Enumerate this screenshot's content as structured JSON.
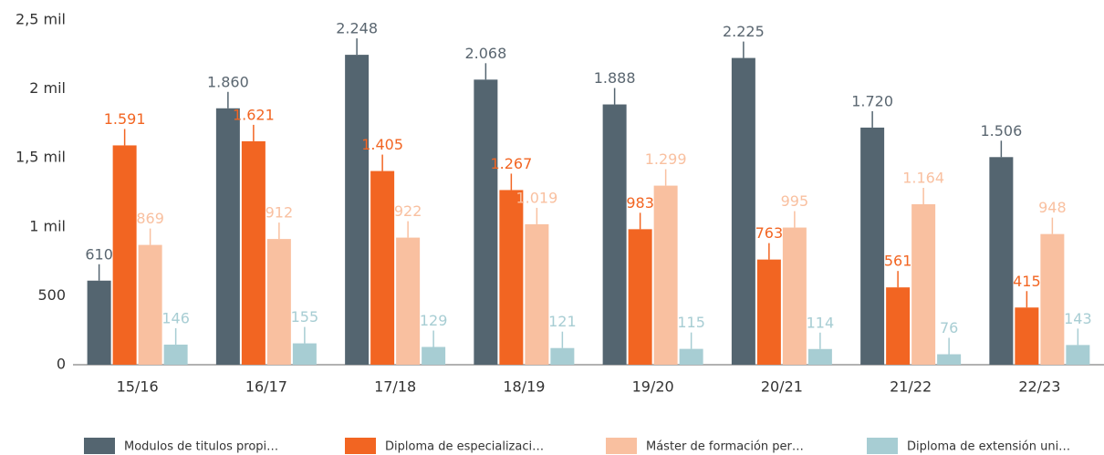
{
  "chart_data": {
    "type": "bar",
    "categories": [
      "15/16",
      "16/17",
      "17/18",
      "18/19",
      "19/20",
      "20/21",
      "21/22",
      "22/23"
    ],
    "series": [
      {
        "name": "Modulos de titulos propi…",
        "color": "#546570",
        "label_color": "#5a6670",
        "values": [
          610,
          1860,
          2248,
          2068,
          1888,
          2225,
          1720,
          1506
        ],
        "value_labels": [
          "610",
          "1.860",
          "2.248",
          "2.068",
          "1.888",
          "2.225",
          "1.720",
          "1.506"
        ]
      },
      {
        "name": "Diploma de especializaci…",
        "color": "#f26522",
        "label_color": "#f26522",
        "values": [
          1591,
          1621,
          1405,
          1267,
          983,
          763,
          561,
          415
        ],
        "value_labels": [
          "1.591",
          "1.621",
          "1.405",
          "1.267",
          "983",
          "763",
          "561",
          "415"
        ]
      },
      {
        "name": "Máster de formación per…",
        "color": "#f9c0a0",
        "label_color": "#f9c0a0",
        "values": [
          869,
          912,
          922,
          1019,
          1299,
          995,
          1164,
          948
        ],
        "value_labels": [
          "869",
          "912",
          "922",
          "1.019",
          "1.299",
          "995",
          "1.164",
          "948"
        ]
      },
      {
        "name": "Diploma de extensión uni…",
        "color": "#a7cdd3",
        "label_color": "#a7cdd3",
        "values": [
          146,
          155,
          129,
          121,
          115,
          114,
          76,
          143
        ],
        "value_labels": [
          "146",
          "155",
          "129",
          "121",
          "115",
          "114",
          "76",
          "143"
        ]
      }
    ],
    "ylim": [
      0,
      2500
    ],
    "yticks": [
      0,
      500,
      {
        "value": 1000,
        "label": "1 mil"
      },
      {
        "value": 1500,
        "label": "1,5 mil"
      },
      {
        "value": 2000,
        "label": "2 mil"
      },
      {
        "value": 2500,
        "label": "2,5 mil"
      }
    ],
    "grid": false,
    "legend": "bottom"
  }
}
